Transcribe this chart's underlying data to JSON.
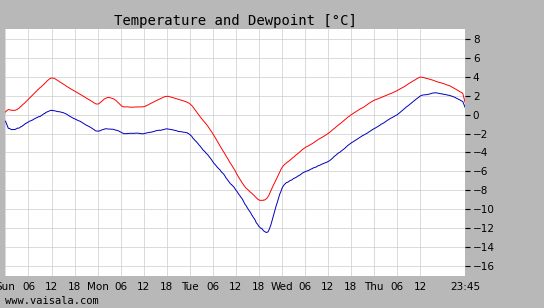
{
  "title": "Temperature and Dewpoint [°C]",
  "xlabel_ticks": [
    "Sun",
    "06",
    "12",
    "18",
    "Mon",
    "06",
    "12",
    "18",
    "Tue",
    "06",
    "12",
    "18",
    "Wed",
    "06",
    "12",
    "18",
    "Thu",
    "06",
    "12",
    "23:45"
  ],
  "xlabel_tick_positions": [
    0,
    6,
    12,
    18,
    24,
    30,
    36,
    42,
    48,
    54,
    60,
    66,
    72,
    78,
    84,
    90,
    96,
    102,
    108,
    119.75
  ],
  "ylabel_ticks": [
    -16,
    -14,
    -12,
    -10,
    -8,
    -6,
    -4,
    -2,
    0,
    2,
    4,
    6,
    8
  ],
  "ylim": [
    -17,
    9
  ],
  "xlim": [
    0,
    119.75
  ],
  "temp_color": "#ff0000",
  "dewpoint_color": "#0000bb",
  "background_color": "#ffffff",
  "outer_background": "#b8b8b8",
  "grid_color": "#cccccc",
  "watermark": "www.vaisala.com",
  "title_fontsize": 10,
  "tick_fontsize": 7.5,
  "watermark_fontsize": 7.5
}
